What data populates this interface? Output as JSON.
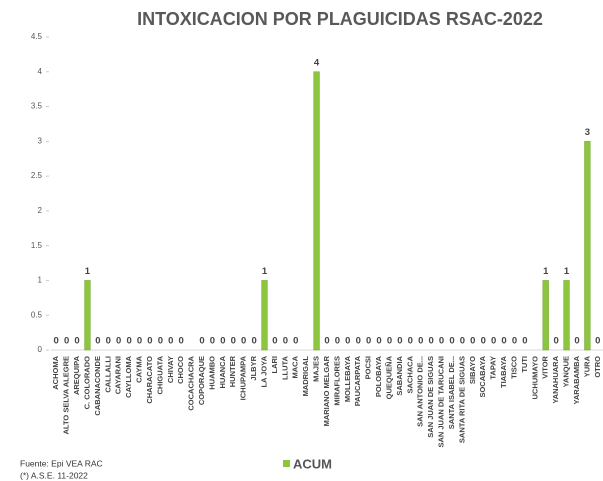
{
  "chart_data": {
    "type": "bar",
    "title": "INTOXICACION POR PLAGUICIDAS RSAC-2022",
    "categories": [
      "ACHOMA",
      "ALTO SELVA ALEGRE",
      "AREQUIPA",
      "C. COLORADO",
      "CABANACONDE",
      "CALLALLI",
      "CAYARANI",
      "CAYLLOMA",
      "CAYMA",
      "CHARACATO",
      "CHIGUATA",
      "CHIVAY",
      "CHOCO",
      "COCACHACRA",
      "COPORAQUE",
      "HUAMBO",
      "HUANCA",
      "HUNTER",
      "ICHUPAMPA",
      "JLBYR",
      "LA JOYA",
      "LARI",
      "LLUTA",
      "MACA",
      "MADRIGAL",
      "MAJES",
      "MARIANO MELGAR",
      "MIRAFLORES",
      "MOLLEBAYA",
      "PAUCARPATA",
      "POCSI",
      "POLOBAYA",
      "QUEQUEÑA",
      "SABANDIA",
      "SACHACA",
      "SAN ANTONIO DE...",
      "SAN JUAN DE SIGUAS",
      "SAN JUAN DE TARUCANI",
      "SANTA ISABEL DE...",
      "SANTA RITA DE SIGUAS",
      "SIBAYO",
      "SOCABAYA",
      "TAPAY",
      "TIABAYA",
      "TISCO",
      "TUTI",
      "UCHUMAYO",
      "VITOR",
      "YANAHUARA",
      "YANQUE",
      "YARABAMBA",
      "YURA",
      "OTRO"
    ],
    "series": [
      {
        "name": "ACUM",
        "color": "#8cc63e",
        "values": [
          0,
          0,
          0,
          1,
          0,
          0,
          0,
          0,
          0,
          0,
          0,
          0,
          0,
          null,
          0,
          0,
          0,
          0,
          0,
          0,
          1,
          0,
          0,
          0,
          null,
          4,
          0,
          0,
          0,
          0,
          0,
          0,
          0,
          0,
          0,
          0,
          0,
          0,
          0,
          0,
          0,
          0,
          0,
          0,
          0,
          0,
          null,
          1,
          0,
          1,
          0,
          3,
          0
        ]
      }
    ],
    "ylim": [
      0,
      4.5
    ],
    "yticks": [
      0,
      0.5,
      1,
      1.5,
      2,
      2.5,
      3,
      3.5,
      4,
      4.5
    ],
    "legend": "bottom",
    "notes": [
      "Fuente:  Epi VEA RAC",
      "(*) A.S.E. 11-2022"
    ]
  }
}
